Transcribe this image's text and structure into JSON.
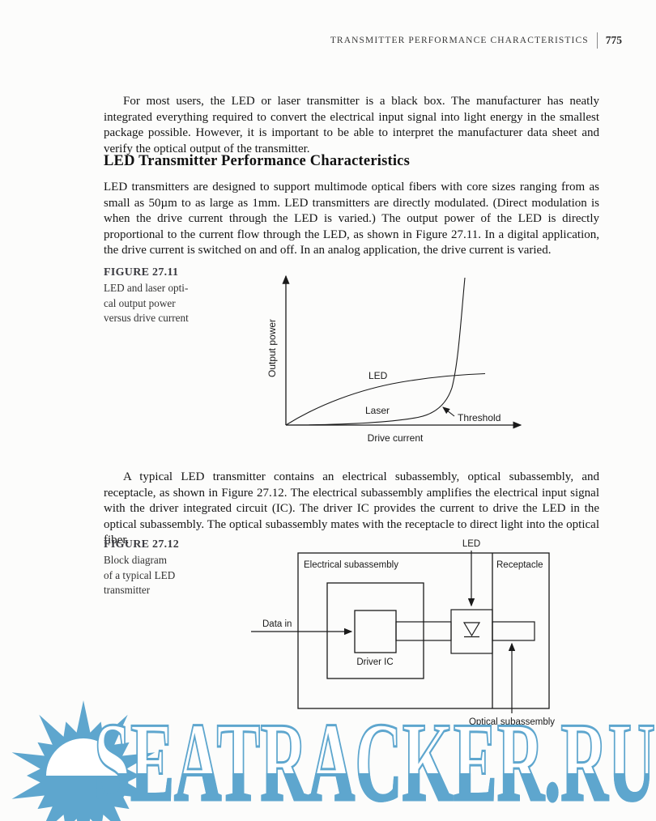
{
  "header": {
    "running_title": "TRANSMITTER PERFORMANCE CHARACTERISTICS",
    "page_number": "775"
  },
  "paragraphs": {
    "intro": "For most users, the LED or laser transmitter is a black box. The manufacturer has neatly integrated everything required to convert the electrical input signal into light energy in the smallest package possible. However, it is important to be able to interpret the manufacturer data sheet and verify the optical output of the transmitter.",
    "led_body": "LED transmitters are designed to support multimode optical fibers with core sizes ranging from as small as 50µm to as large as 1mm. LED transmitters are directly modulated. (Direct modulation is when the drive current through the LED is varied.) The output power of the LED is directly proportional to the current flow through the LED, as shown in Figure 27.11. In a digital application, the drive current is switched on and off. In an analog application, the drive current is varied.",
    "typical": "A typical LED transmitter contains an electrical subassembly, optical subassembly, and receptacle, as shown in Figure 27.12. The electrical subassembly amplifies the electrical input signal with the driver integrated circuit (IC). The driver IC provides the current to drive the LED in the optical subassembly. The optical subassembly mates with the receptacle to direct light into the optical fiber."
  },
  "section_heading": "LED Transmitter Performance Characteristics",
  "figure1": {
    "label": "FIGURE 27.11",
    "caption_lines": [
      "LED and laser opti-",
      "cal output power",
      "versus drive current"
    ],
    "ylabel": "Output power",
    "xlabel": "Drive current",
    "series_led": "LED",
    "series_laser": "Laser",
    "annotation_threshold": "Threshold"
  },
  "figure2": {
    "label": "FIGURE 27.12",
    "caption_lines": [
      "Block diagram",
      "of a typical LED",
      "transmitter"
    ],
    "labels": {
      "led": "LED",
      "electrical": "Electrical subassembly",
      "receptacle": "Receptacle",
      "data_in": "Data in",
      "driver_ic": "Driver IC",
      "optical": "Optical subassembly"
    }
  },
  "watermark": {
    "text": "SEATRACKER.RU",
    "color": "#5EA6CE"
  },
  "chart_data": {
    "type": "line",
    "title": "FIGURE 27.11 — LED and laser optical output power versus drive current",
    "xlabel": "Drive current",
    "ylabel": "Output power",
    "axis_ticks": "none (conceptual curves, unlabeled axes with arrowheads)",
    "x_relative": [
      0,
      10,
      20,
      30,
      40,
      50,
      60,
      70,
      75,
      80,
      85
    ],
    "series": [
      {
        "name": "LED",
        "values_relative": [
          0,
          10,
          18,
          24,
          28,
          31,
          33,
          34,
          34.5,
          35,
          35
        ]
      },
      {
        "name": "Laser",
        "values_relative": [
          0,
          0.5,
          1,
          1.5,
          2,
          3,
          5,
          13,
          25,
          60,
          100
        ]
      }
    ],
    "annotations": [
      {
        "text": "Threshold",
        "meaning": "knee of laser curve where lasing begins"
      }
    ],
    "legend_position": "labels drawn next to curves",
    "grid": false
  }
}
